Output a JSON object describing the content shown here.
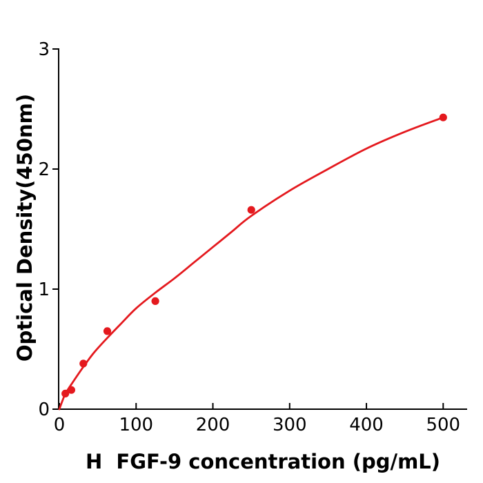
{
  "figure": {
    "background": "#ffffff"
  },
  "chart_data": {
    "type": "scatter",
    "title": "",
    "xlabel": "H  FGF-9 concentration (pg/mL)",
    "ylabel": "Optical Density(450nm)",
    "xlim": [
      0,
      531
    ],
    "ylim": [
      0,
      3
    ],
    "grid": false,
    "legend_position": "none",
    "x_ticks": [
      0,
      100,
      200,
      300,
      400,
      500
    ],
    "y_ticks": [
      0,
      1,
      2,
      3
    ],
    "colors": {
      "series": "#e4191e",
      "axis": "#000000",
      "text": "#000000"
    },
    "series": [
      {
        "marker": "circle",
        "marker_color": "#e4191e",
        "line_color": "#e4191e",
        "points": [
          {
            "x": 7.8,
            "y": 0.13
          },
          {
            "x": 15.6,
            "y": 0.16
          },
          {
            "x": 31.25,
            "y": 0.38
          },
          {
            "x": 62.5,
            "y": 0.65
          },
          {
            "x": 125,
            "y": 0.9
          },
          {
            "x": 250,
            "y": 1.66
          },
          {
            "x": 500,
            "y": 2.43
          }
        ],
        "fit_curve": [
          [
            0,
            0
          ],
          [
            4,
            0.07
          ],
          [
            8,
            0.13
          ],
          [
            16,
            0.21
          ],
          [
            31,
            0.35
          ],
          [
            45,
            0.47
          ],
          [
            62,
            0.59
          ],
          [
            80,
            0.71
          ],
          [
            100,
            0.84
          ],
          [
            125,
            0.97
          ],
          [
            150,
            1.09
          ],
          [
            175,
            1.22
          ],
          [
            200,
            1.35
          ],
          [
            225,
            1.48
          ],
          [
            250,
            1.61
          ],
          [
            300,
            1.82
          ],
          [
            350,
            2.0
          ],
          [
            400,
            2.17
          ],
          [
            450,
            2.31
          ],
          [
            500,
            2.43
          ]
        ]
      }
    ]
  }
}
